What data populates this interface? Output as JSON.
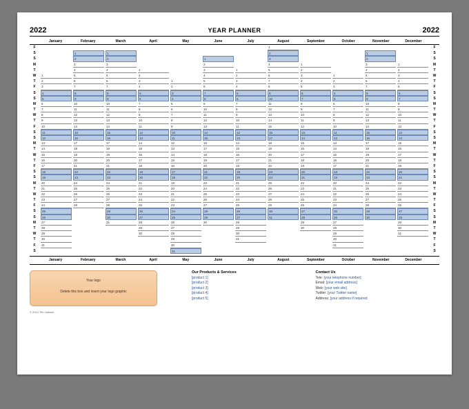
{
  "title": "YEAR PLANNER",
  "year": "2022",
  "months": [
    "January",
    "February",
    "March",
    "April",
    "May",
    "June",
    "July",
    "August",
    "September",
    "October",
    "November",
    "December"
  ],
  "day_labels": [
    "F",
    "S",
    "S",
    "M",
    "T",
    "W",
    "T",
    "F",
    "S",
    "S",
    "M",
    "T",
    "W",
    "T",
    "F",
    "S",
    "S",
    "M",
    "T",
    "W",
    "T",
    "F",
    "S",
    "S",
    "M",
    "T",
    "W",
    "T",
    "F",
    "S",
    "S",
    "M",
    "T",
    "W",
    "T",
    "F",
    "S"
  ],
  "weekend_color": "#b9cce4",
  "month_start_offsets": [
    5,
    1,
    1,
    4,
    6,
    2,
    4,
    0,
    3,
    5,
    1,
    3
  ],
  "month_lengths": [
    31,
    28,
    31,
    30,
    31,
    30,
    31,
    31,
    30,
    31,
    30,
    31
  ],
  "logo": {
    "line1": "Your logo",
    "line2": "Delete this box and insert your logo graphic"
  },
  "products": {
    "heading": "Our Products & Services",
    "items": [
      "[product 1]",
      "[product 2]",
      "[product 3]",
      "[product 4]",
      "[product 5]"
    ]
  },
  "contact": {
    "heading": "Contact Us",
    "items": [
      {
        "label": "Tele:",
        "value": "[your telephone number]"
      },
      {
        "label": "Email:",
        "value": "[your email address]"
      },
      {
        "label": "Web:",
        "value": "[your web site]"
      },
      {
        "label": "Twitter:",
        "value": "[your Twitter name]"
      },
      {
        "label": "Address:",
        "value": "[your address if required"
      }
    ]
  },
  "copyright": "© 2014 Tim Lawson"
}
